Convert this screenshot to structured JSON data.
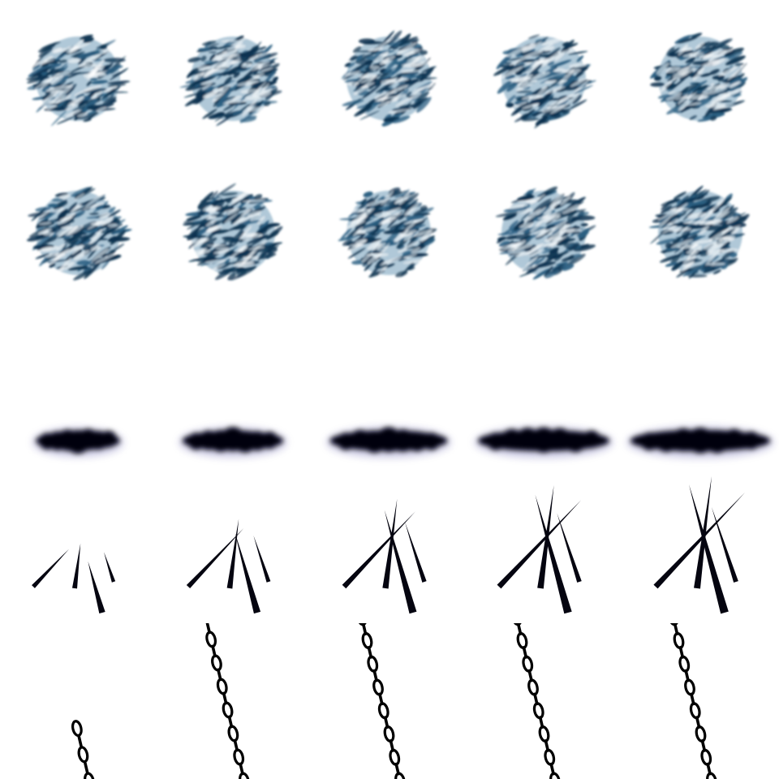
{
  "sheet": {
    "background": "#ffffff",
    "rows": [
      {
        "kind": "scribble-ball",
        "color": "#0d3350",
        "highlight": "#6f9bb8",
        "frames": 5
      },
      {
        "kind": "scribble-ball",
        "color": "#0d3350",
        "highlight": "#6f9bb8",
        "frames": 5
      },
      {
        "kind": "smoke-cloud",
        "color": "#050510",
        "glow": "#5a56a8",
        "frames": 5,
        "growth": [
          0.6,
          0.72,
          0.84,
          0.94,
          1.0
        ]
      },
      {
        "kind": "slash-strokes",
        "color": "#050510",
        "frames": 5,
        "growth": [
          0.4,
          0.62,
          0.8,
          0.92,
          1.0
        ]
      },
      {
        "kind": "chain",
        "color": "#000000",
        "frames": 5,
        "growth": [
          0.28,
          0.82,
          1.0,
          1.0,
          1.0
        ]
      }
    ]
  }
}
